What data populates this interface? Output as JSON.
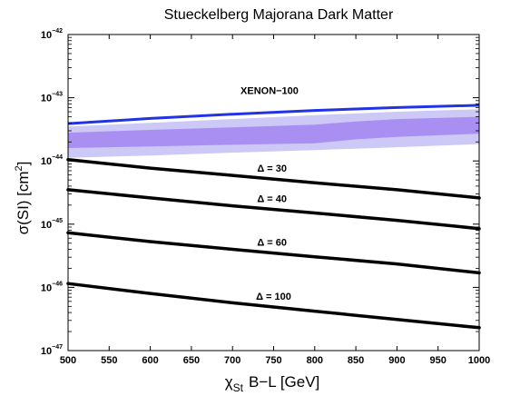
{
  "chart_data": {
    "type": "line",
    "title": "Stueckelberg Majorana Dark Matter",
    "xlabel": {
      "symbol": "χ",
      "subscript": "St",
      "rest": "B−L    [GeV]"
    },
    "ylabel": {
      "text": "σ(SI)   [cm",
      "superscript": "2",
      "close": "]"
    },
    "xlim": [
      500,
      1000
    ],
    "ylim_exponent": [
      -47,
      -42
    ],
    "y_scale": "log",
    "x_ticks": [
      500,
      550,
      600,
      650,
      700,
      750,
      800,
      850,
      900,
      950,
      1000
    ],
    "y_ticks": [
      {
        "base": "10",
        "exp": "−42",
        "value": 1e-42
      },
      {
        "base": "10",
        "exp": "−43",
        "value": 1e-43
      },
      {
        "base": "10",
        "exp": "−44",
        "value": 1e-44
      },
      {
        "base": "10",
        "exp": "−45",
        "value": 1e-45
      },
      {
        "base": "10",
        "exp": "−46",
        "value": 1e-46
      },
      {
        "base": "10",
        "exp": "−47",
        "value": 1e-47
      }
    ],
    "colors": {
      "xenon_line": "#2233e6",
      "band_outer": "#ccc9f7",
      "band_inner": "#a98ff2",
      "curves": "#000000"
    },
    "xenon": {
      "label": "XENON−100",
      "x": [
        500,
        600,
        700,
        800,
        900,
        1000
      ],
      "y": [
        3.9e-44,
        4.7e-44,
        5.5e-44,
        6.3e-44,
        7e-44,
        7.6e-44
      ]
    },
    "band_outer": {
      "x": [
        500,
        600,
        700,
        800,
        900,
        1000
      ],
      "upper": [
        3.5e-44,
        4e-44,
        4.6e-44,
        5.3e-44,
        6e-44,
        6.6e-44
      ],
      "lower": [
        1.12e-44,
        1.22e-44,
        1.35e-44,
        1.48e-44,
        1.65e-44,
        1.85e-44
      ]
    },
    "band_inner": {
      "x": [
        500,
        600,
        700,
        800,
        850,
        900,
        1000
      ],
      "upper": [
        2.8e-44,
        3.1e-44,
        3.4e-44,
        3.75e-44,
        4.2e-44,
        4.6e-44,
        5e-44
      ],
      "lower": [
        1.6e-44,
        1.7e-44,
        1.8e-44,
        1.9e-44,
        2.2e-44,
        2.4e-44,
        2.7e-44
      ]
    },
    "series": [
      {
        "label": "Δ = 30",
        "x": [
          500,
          600,
          700,
          800,
          900,
          1000
        ],
        "y": [
          1.05e-44,
          7.7e-45,
          5.9e-45,
          4.5e-45,
          3.5e-45,
          2.6e-45
        ]
      },
      {
        "label": "Δ = 40",
        "x": [
          500,
          600,
          700,
          800,
          900,
          1000
        ],
        "y": [
          3.5e-45,
          2.6e-45,
          1.95e-45,
          1.5e-45,
          1.15e-45,
          8.5e-46
        ]
      },
      {
        "label": "Δ = 60",
        "x": [
          500,
          600,
          700,
          800,
          900,
          1000
        ],
        "y": [
          7.3e-46,
          5.3e-46,
          4e-46,
          3.05e-46,
          2.35e-46,
          1.7e-46
        ]
      },
      {
        "label": "Δ = 100",
        "x": [
          500,
          600,
          700,
          800,
          900,
          1000
        ],
        "y": [
          1.15e-46,
          8e-47,
          5.7e-47,
          4.2e-47,
          3.1e-47,
          2.3e-47
        ]
      }
    ]
  }
}
